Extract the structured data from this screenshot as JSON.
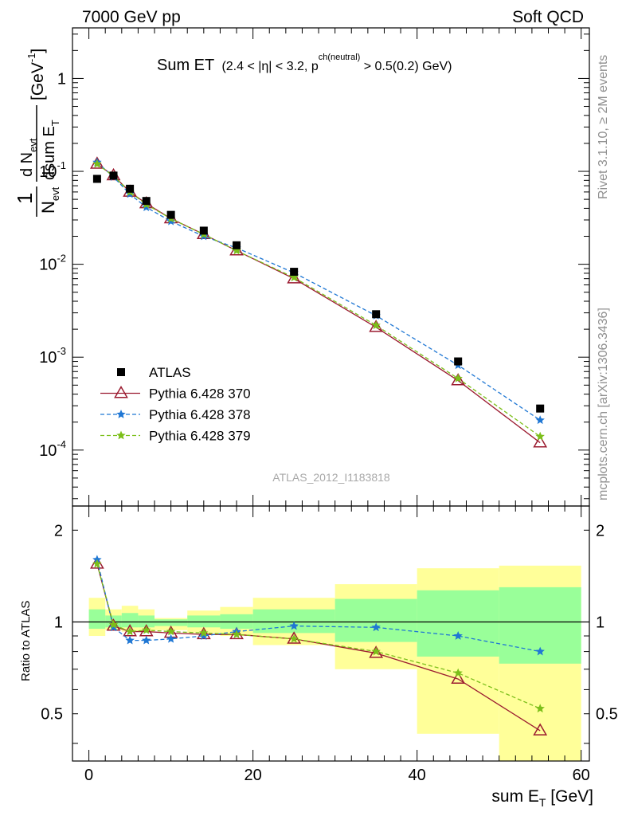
{
  "header": {
    "left": "7000 GeV pp",
    "right": "Soft QCD"
  },
  "side_labels": {
    "rivet": "Rivet 3.1.10, ≥ 2M events",
    "mcplots": "mcplots.cern.ch [arXiv:1306.3436]"
  },
  "watermark": "ATLAS_2012_I1183818",
  "title": {
    "main": "Sum ET",
    "sub": "(2.4 < |η| < 3.2, p",
    "sup": "ch(neutral)",
    "tail": " > 0.5(0.2) GeV)"
  },
  "ylabel_main": {
    "numer": "d N",
    "numer_sub": "evt",
    "denom": "dsum E",
    "denom_sub": "T",
    "prefix_num": "1",
    "prefix_den": "N",
    "prefix_den_sub": "evt",
    "unit": "[GeV",
    "unit_sup": "-1",
    "unit_close": "]"
  },
  "ylabel_ratio": "Ratio to ATLAS",
  "xlabel": {
    "text": "sum E",
    "sub": "T",
    "unit": " [GeV]"
  },
  "colors": {
    "atlas": "#000000",
    "p370": "#9b1b30",
    "p378": "#1f77d4",
    "p379": "#7cbf1a",
    "band_yellow": "#ffff99",
    "band_green": "#99ff99"
  },
  "chart_data": [
    {
      "type": "scatter",
      "scale_y": "log",
      "xlim": [
        -2,
        61
      ],
      "ylim": [
        2.5e-05,
        3.5
      ],
      "yticks": [
        {
          "v": 0.0001,
          "label": "10",
          "exp": "-4"
        },
        {
          "v": 0.001,
          "label": "10",
          "exp": "-3"
        },
        {
          "v": 0.01,
          "label": "10",
          "exp": "-2"
        },
        {
          "v": 0.1,
          "label": "10",
          "exp": "-1"
        },
        {
          "v": 1,
          "label": "1",
          "exp": ""
        }
      ],
      "legend_position": "bottom-left",
      "x": [
        1,
        3,
        5,
        7,
        10,
        14,
        18,
        25,
        35,
        45,
        55
      ],
      "series": [
        {
          "name": "ATLAS",
          "values": [
            0.083,
            0.09,
            0.065,
            0.048,
            0.034,
            0.023,
            0.016,
            0.0083,
            0.0029,
            0.0009,
            0.00028
          ]
        },
        {
          "name": "Pythia 6.428 370",
          "values": [
            0.12,
            0.09,
            0.06,
            0.045,
            0.031,
            0.021,
            0.014,
            0.007,
            0.0021,
            0.00056,
            0.00012
          ]
        },
        {
          "name": "Pythia 6.428 378",
          "values": [
            0.125,
            0.087,
            0.057,
            0.041,
            0.029,
            0.02,
            0.015,
            0.0081,
            0.0028,
            0.00082,
            0.00021
          ]
        },
        {
          "name": "Pythia 6.428 379",
          "values": [
            0.12,
            0.089,
            0.06,
            0.044,
            0.031,
            0.021,
            0.014,
            0.0072,
            0.0022,
            0.00059,
            0.00014
          ]
        }
      ]
    },
    {
      "type": "line",
      "scale_y": "log",
      "xlim": [
        -2,
        61
      ],
      "ylim": [
        0.35,
        2.4
      ],
      "yticks": [
        {
          "v": 0.5,
          "label": "0.5"
        },
        {
          "v": 1,
          "label": "1"
        },
        {
          "v": 2,
          "label": "2"
        }
      ],
      "xticks": [
        0,
        20,
        40,
        60
      ],
      "bands": [
        {
          "x": [
            0,
            2
          ],
          "yellow": [
            0.9,
            1.2
          ],
          "green": [
            0.95,
            1.1
          ]
        },
        {
          "x": [
            2,
            4
          ],
          "yellow": [
            0.94,
            1.1
          ],
          "green": [
            0.96,
            1.05
          ]
        },
        {
          "x": [
            4,
            6
          ],
          "yellow": [
            0.93,
            1.13
          ],
          "green": [
            0.96,
            1.07
          ]
        },
        {
          "x": [
            6,
            8
          ],
          "yellow": [
            0.93,
            1.1
          ],
          "green": [
            0.96,
            1.05
          ]
        },
        {
          "x": [
            8,
            12
          ],
          "yellow": [
            0.94,
            1.03
          ],
          "green": [
            0.97,
            1.02
          ]
        },
        {
          "x": [
            12,
            16
          ],
          "yellow": [
            0.92,
            1.09
          ],
          "green": [
            0.96,
            1.05
          ]
        },
        {
          "x": [
            16,
            20
          ],
          "yellow": [
            0.9,
            1.12
          ],
          "green": [
            0.95,
            1.06
          ]
        },
        {
          "x": [
            20,
            30
          ],
          "yellow": [
            0.84,
            1.2
          ],
          "green": [
            0.92,
            1.1
          ]
        },
        {
          "x": [
            30,
            40
          ],
          "yellow": [
            0.7,
            1.33
          ],
          "green": [
            0.86,
            1.19
          ]
        },
        {
          "x": [
            40,
            50
          ],
          "yellow": [
            0.43,
            1.5
          ],
          "green": [
            0.77,
            1.27
          ]
        },
        {
          "x": [
            50,
            60
          ],
          "yellow": [
            0.35,
            1.53
          ],
          "green": [
            0.73,
            1.3
          ]
        }
      ],
      "x": [
        1,
        3,
        5,
        7,
        10,
        14,
        18,
        25,
        35,
        45,
        55
      ],
      "series": [
        {
          "name": "Pythia 6.428 370",
          "values": [
            1.55,
            0.97,
            0.93,
            0.93,
            0.92,
            0.91,
            0.91,
            0.88,
            0.79,
            0.65,
            0.44
          ]
        },
        {
          "name": "Pythia 6.428 378",
          "values": [
            1.6,
            0.96,
            0.87,
            0.87,
            0.88,
            0.9,
            0.93,
            0.97,
            0.96,
            0.9,
            0.8
          ]
        },
        {
          "name": "Pythia 6.428 379",
          "values": [
            1.55,
            0.98,
            0.93,
            0.94,
            0.93,
            0.92,
            0.91,
            0.88,
            0.8,
            0.68,
            0.52
          ]
        }
      ]
    }
  ]
}
